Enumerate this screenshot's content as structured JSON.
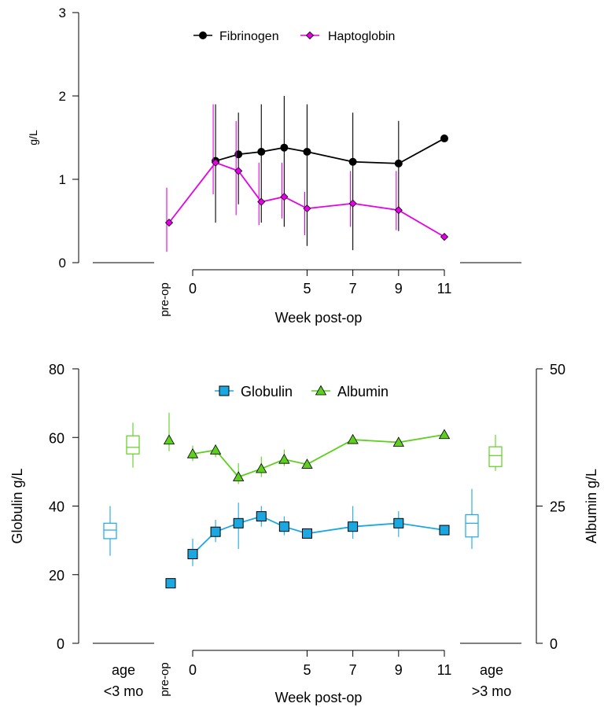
{
  "chart_data": [
    {
      "type": "line",
      "ylabel": "g/L",
      "xlabel": "Week post-op",
      "preop_label": "pre-op",
      "ylim": [
        0,
        3
      ],
      "yticks": [
        0,
        1,
        2,
        3
      ],
      "xticks": [
        0,
        5,
        7,
        9,
        11
      ],
      "legend_position": "top-center",
      "series": [
        {
          "name": "Fibrinogen",
          "color": "#000000",
          "marker": "circle",
          "x": [
            1,
            2,
            3,
            4,
            5,
            7,
            9,
            11
          ],
          "y": [
            1.22,
            1.3,
            1.33,
            1.38,
            1.33,
            1.21,
            1.19,
            1.49
          ],
          "err_low": [
            0.48,
            0.7,
            0.48,
            0.43,
            0.2,
            0.15,
            0.38,
            1.49
          ],
          "err_high": [
            1.9,
            1.8,
            1.9,
            2.0,
            1.9,
            1.8,
            1.7,
            1.49
          ]
        },
        {
          "name": "Haptoglobin",
          "color": "#e600e6",
          "marker": "diamond",
          "x": [
            "pre-op",
            1,
            2,
            3,
            4,
            5,
            7,
            9,
            11
          ],
          "y": [
            0.48,
            1.2,
            1.1,
            0.73,
            0.79,
            0.65,
            0.71,
            0.63,
            0.31
          ],
          "err_low": [
            0.13,
            0.82,
            0.57,
            0.45,
            0.53,
            0.33,
            0.43,
            0.39,
            0.31
          ],
          "err_high": [
            0.9,
            1.9,
            1.7,
            1.2,
            1.2,
            0.85,
            1.1,
            1.1,
            0.31
          ]
        }
      ]
    },
    {
      "type": "line",
      "ylabel": "Globulin g/L",
      "y2label": "Albumin g/L",
      "xlabel": "Week post-op",
      "preop_label": "pre-op",
      "left_group_label": [
        "age",
        "<3 mo"
      ],
      "right_group_label": [
        "age",
        ">3 mo"
      ],
      "ylim": [
        0,
        80
      ],
      "yticks": [
        0,
        20,
        40,
        60,
        80
      ],
      "y2lim": [
        0,
        50
      ],
      "y2ticks": [
        0,
        25,
        50
      ],
      "xticks": [
        0,
        5,
        7,
        9,
        11
      ],
      "legend_position": "top-center",
      "series": [
        {
          "name": "Globulin",
          "axis": "left",
          "color": "#1ba8e0",
          "marker": "square",
          "preop": {
            "y": 17.5
          },
          "x": [
            0,
            1,
            2,
            3,
            4,
            5,
            7,
            9,
            11
          ],
          "y": [
            26,
            32.5,
            35,
            37,
            34,
            32,
            34,
            35,
            33
          ],
          "err_low": [
            22.5,
            29.5,
            27.5,
            34,
            31.5,
            32,
            30.5,
            31,
            33
          ],
          "err_high": [
            30.5,
            36,
            41,
            40,
            37,
            32,
            40,
            38.5,
            33
          ]
        },
        {
          "name": "Albumin",
          "axis": "right",
          "color": "#5ecf1e",
          "marker": "triangle",
          "preop": {
            "y": 37,
            "err_low": 35,
            "err_high": 42
          },
          "x": [
            0,
            1,
            2,
            3,
            4,
            5,
            7,
            9,
            11
          ],
          "y": [
            34.5,
            35.2,
            30.3,
            31.8,
            33.5,
            32.6,
            37.1,
            36.6,
            38
          ],
          "err_low": [
            33.2,
            33.9,
            29.0,
            30.3,
            32.3,
            32.0,
            37.1,
            36.6,
            38
          ],
          "err_high": [
            36.0,
            36.2,
            32.8,
            34.0,
            35.3,
            33.5,
            37.1,
            36.6,
            38
          ]
        }
      ],
      "boxplots": [
        {
          "group": "age <3 mo",
          "series": "Globulin",
          "axis": "left",
          "min": 25.5,
          "q1": 30.5,
          "median": 33,
          "q3": 35,
          "max": 40
        },
        {
          "group": "age <3 mo",
          "series": "Albumin",
          "axis": "right",
          "min": 32,
          "q1": 34.5,
          "median": 35.7,
          "q3": 37.8,
          "max": 40.2
        },
        {
          "group": "age >3 mo",
          "series": "Globulin",
          "axis": "left",
          "min": 27.5,
          "q1": 31,
          "median": 35,
          "q3": 37.5,
          "max": 45
        },
        {
          "group": "age >3 mo",
          "series": "Albumin",
          "axis": "right",
          "min": 31.4,
          "q1": 32.2,
          "median": 34.2,
          "q3": 35.8,
          "max": 38
        }
      ]
    }
  ]
}
